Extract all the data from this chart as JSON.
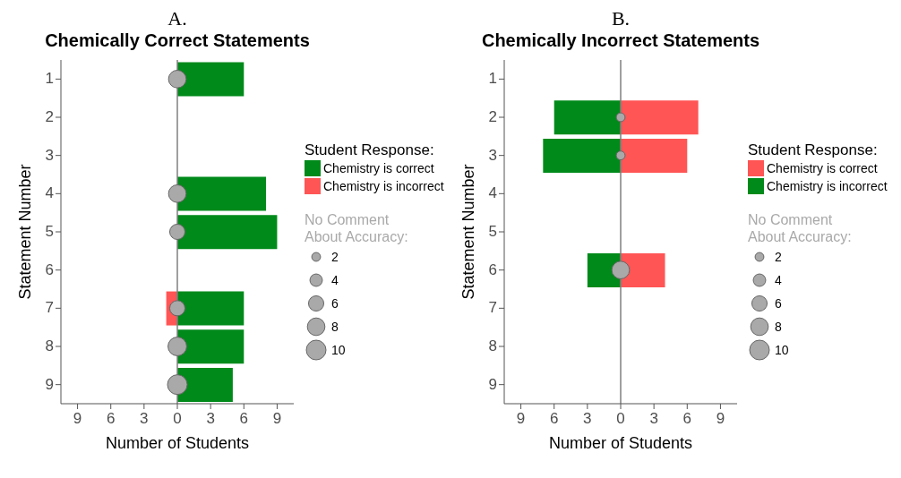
{
  "chart_data": [
    {
      "type": "bar",
      "title": "A.",
      "subtitle": "Chemically Correct Statements",
      "orientation": "horizontal",
      "stacked": true,
      "xlabel": "Number of Students",
      "ylabel": "Statement Number",
      "legend": "right",
      "legend_title": "Student Response:",
      "categories": [
        "1",
        "2",
        "3",
        "4",
        "5",
        "6",
        "7",
        "8",
        "9"
      ],
      "xlim": [
        -10.5,
        10.5
      ],
      "xticks": [
        {
          "value": -9,
          "label": "9"
        },
        {
          "value": -6,
          "label": "6"
        },
        {
          "value": -3,
          "label": "3"
        },
        0,
        3,
        6,
        9
      ],
      "ref_lines": [
        {
          "axis": "x",
          "value": 0,
          "color": "#7f7f7f"
        }
      ],
      "size_legend": [
        2,
        4,
        6,
        8,
        10
      ],
      "series": [
        {
          "name": "Chemistry is correct",
          "color": "#008a1a",
          "values": [
            6,
            null,
            null,
            8,
            9,
            null,
            6,
            6,
            5
          ]
        },
        {
          "name": "Chemistry is incorrect",
          "color": "#ff5555",
          "values": [
            null,
            null,
            null,
            null,
            null,
            null,
            -1,
            null,
            null
          ]
        },
        {
          "type": "bubble",
          "name": "No Comment About Accuracy:",
          "color": "#a9a9a9",
          "values": [
            0,
            null,
            null,
            0,
            0,
            null,
            0,
            0,
            0
          ],
          "sizes": [
            8,
            null,
            null,
            8,
            6,
            null,
            6,
            9,
            10
          ]
        }
      ]
    },
    {
      "type": "bar",
      "title": "B.",
      "subtitle": "Chemically Incorrect Statements",
      "orientation": "horizontal",
      "stacked": true,
      "xlabel": "Number of Students",
      "ylabel": "Statement Number",
      "legend": "right",
      "legend_title": "Student Response:",
      "categories": [
        "1",
        "2",
        "3",
        "4",
        "5",
        "6",
        "7",
        "8",
        "9"
      ],
      "xlim": [
        -10.5,
        10.5
      ],
      "xticks": [
        {
          "value": -9,
          "label": "9"
        },
        {
          "value": -6,
          "label": "6"
        },
        {
          "value": -3,
          "label": "3"
        },
        0,
        3,
        6,
        9
      ],
      "ref_lines": [
        {
          "axis": "x",
          "value": 0,
          "color": "#7f7f7f"
        }
      ],
      "size_legend": [
        2,
        4,
        6,
        8,
        10
      ],
      "series": [
        {
          "name": "Chemistry is correct",
          "color": "#ff5555",
          "values": [
            null,
            7,
            6,
            null,
            null,
            4,
            null,
            null,
            null
          ]
        },
        {
          "name": "Chemistry is incorrect",
          "color": "#008a1a",
          "values": [
            null,
            -6,
            -7,
            null,
            null,
            -3,
            null,
            null,
            null
          ]
        },
        {
          "type": "bubble",
          "name": "No Comment About Accuracy:",
          "color": "#a9a9a9",
          "values": [
            null,
            0,
            0,
            null,
            null,
            0,
            null,
            null,
            null
          ],
          "sizes": [
            null,
            2,
            2,
            null,
            null,
            8,
            null,
            null,
            null
          ]
        }
      ]
    }
  ]
}
